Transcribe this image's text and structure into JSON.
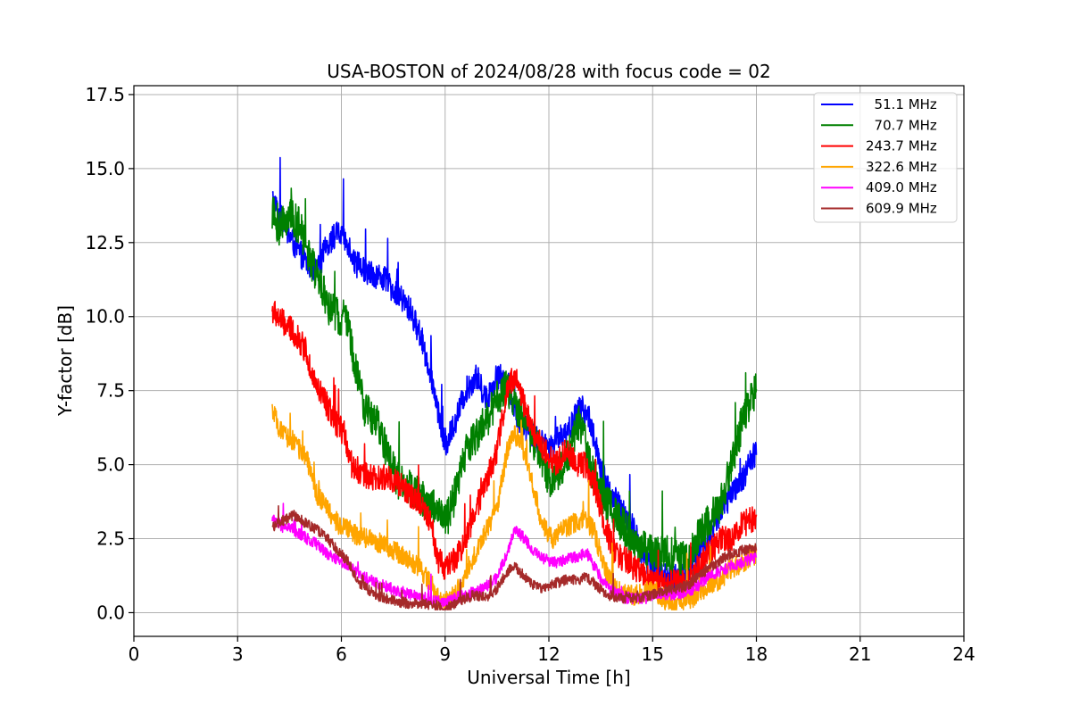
{
  "chart_data": {
    "type": "line",
    "title": "USA-BOSTON of 2024/08/28 with focus code = 02",
    "xlabel": "Universal Time [h]",
    "ylabel": "Y-factor [dB]",
    "xlim": [
      0,
      24
    ],
    "ylim": [
      -0.8,
      17.8
    ],
    "x_ticks": [
      "0",
      "3",
      "6",
      "9",
      "12",
      "15",
      "18",
      "21",
      "24"
    ],
    "y_ticks": [
      "0.0",
      "2.5",
      "5.0",
      "7.5",
      "10.0",
      "12.5",
      "15.0",
      "17.5"
    ],
    "grid": true,
    "legend_position": "upper right",
    "series": [
      {
        "name": "  51.1 MHz",
        "color": "#0000ff",
        "noise": 0.45,
        "points": [
          [
            4.0,
            14.0
          ],
          [
            4.3,
            13.2
          ],
          [
            4.6,
            12.5
          ],
          [
            5.0,
            11.8
          ],
          [
            5.3,
            11.5
          ],
          [
            5.6,
            12.5
          ],
          [
            5.9,
            12.8
          ],
          [
            6.2,
            12.5
          ],
          [
            6.4,
            11.8
          ],
          [
            6.8,
            11.5
          ],
          [
            7.2,
            11.3
          ],
          [
            7.6,
            10.8
          ],
          [
            8.0,
            10.2
          ],
          [
            8.3,
            9.3
          ],
          [
            8.6,
            8.0
          ],
          [
            8.8,
            6.8
          ],
          [
            9.0,
            5.6
          ],
          [
            9.3,
            6.5
          ],
          [
            9.6,
            7.5
          ],
          [
            9.9,
            8.0
          ],
          [
            10.2,
            7.2
          ],
          [
            10.5,
            8.0
          ],
          [
            10.8,
            7.8
          ],
          [
            11.1,
            6.5
          ],
          [
            11.4,
            6.2
          ],
          [
            11.7,
            5.8
          ],
          [
            12.0,
            5.5
          ],
          [
            12.3,
            6.0
          ],
          [
            12.6,
            6.2
          ],
          [
            12.9,
            7.0
          ],
          [
            13.2,
            6.5
          ],
          [
            13.5,
            4.8
          ],
          [
            13.8,
            4.0
          ],
          [
            14.1,
            3.5
          ],
          [
            14.4,
            3.0
          ],
          [
            14.7,
            2.0
          ],
          [
            15.0,
            1.5
          ],
          [
            15.5,
            1.2
          ],
          [
            16.0,
            1.2
          ],
          [
            16.3,
            2.0
          ],
          [
            16.6,
            2.5
          ],
          [
            17.0,
            3.5
          ],
          [
            17.3,
            4.0
          ],
          [
            17.6,
            4.5
          ],
          [
            18.0,
            5.5
          ]
        ]
      },
      {
        "name": "  70.7 MHz",
        "color": "#008000",
        "noise": 0.65,
        "points": [
          [
            4.0,
            13.5
          ],
          [
            4.2,
            13.0
          ],
          [
            4.5,
            13.5
          ],
          [
            4.8,
            13.0
          ],
          [
            5.1,
            12.0
          ],
          [
            5.4,
            11.0
          ],
          [
            5.7,
            10.2
          ],
          [
            6.0,
            10.0
          ],
          [
            6.2,
            9.8
          ],
          [
            6.4,
            8.2
          ],
          [
            6.7,
            6.8
          ],
          [
            7.0,
            6.5
          ],
          [
            7.3,
            5.5
          ],
          [
            7.6,
            4.5
          ],
          [
            8.0,
            4.2
          ],
          [
            8.4,
            3.8
          ],
          [
            8.8,
            3.5
          ],
          [
            9.0,
            3.0
          ],
          [
            9.3,
            4.0
          ],
          [
            9.6,
            5.5
          ],
          [
            9.9,
            6.0
          ],
          [
            10.2,
            6.5
          ],
          [
            10.5,
            7.2
          ],
          [
            10.8,
            7.6
          ],
          [
            11.1,
            6.8
          ],
          [
            11.4,
            6.2
          ],
          [
            11.7,
            5.5
          ],
          [
            12.0,
            4.5
          ],
          [
            12.3,
            4.8
          ],
          [
            12.6,
            5.5
          ],
          [
            12.9,
            6.5
          ],
          [
            13.2,
            5.0
          ],
          [
            13.5,
            4.0
          ],
          [
            13.8,
            3.5
          ],
          [
            14.1,
            3.0
          ],
          [
            14.4,
            2.5
          ],
          [
            14.7,
            2.2
          ],
          [
            15.0,
            2.0
          ],
          [
            15.5,
            2.0
          ],
          [
            16.0,
            1.8
          ],
          [
            16.3,
            2.5
          ],
          [
            16.6,
            3.0
          ],
          [
            17.0,
            3.8
          ],
          [
            17.3,
            5.0
          ],
          [
            17.6,
            6.5
          ],
          [
            18.0,
            7.5
          ]
        ]
      },
      {
        "name": "243.7 MHz",
        "color": "#ff0000",
        "noise": 0.45,
        "points": [
          [
            4.0,
            10.2
          ],
          [
            4.3,
            9.8
          ],
          [
            4.6,
            9.5
          ],
          [
            5.0,
            8.8
          ],
          [
            5.2,
            7.8
          ],
          [
            5.5,
            7.2
          ],
          [
            5.8,
            6.5
          ],
          [
            6.1,
            6.0
          ],
          [
            6.3,
            5.0
          ],
          [
            6.6,
            4.7
          ],
          [
            7.0,
            4.5
          ],
          [
            7.4,
            4.6
          ],
          [
            7.8,
            4.2
          ],
          [
            8.2,
            3.8
          ],
          [
            8.6,
            3.0
          ],
          [
            8.8,
            1.8
          ],
          [
            9.0,
            1.5
          ],
          [
            9.3,
            1.8
          ],
          [
            9.6,
            2.5
          ],
          [
            9.9,
            3.5
          ],
          [
            10.2,
            4.5
          ],
          [
            10.5,
            5.5
          ],
          [
            10.8,
            7.5
          ],
          [
            11.0,
            8.0
          ],
          [
            11.3,
            7.0
          ],
          [
            11.6,
            6.0
          ],
          [
            11.9,
            5.5
          ],
          [
            12.2,
            5.0
          ],
          [
            12.5,
            5.5
          ],
          [
            12.8,
            5.0
          ],
          [
            13.1,
            5.0
          ],
          [
            13.4,
            4.0
          ],
          [
            13.6,
            3.0
          ],
          [
            13.9,
            2.0
          ],
          [
            14.2,
            1.8
          ],
          [
            14.5,
            1.5
          ],
          [
            14.8,
            1.2
          ],
          [
            15.0,
            1.0
          ],
          [
            15.5,
            1.0
          ],
          [
            16.0,
            1.0
          ],
          [
            16.3,
            1.5
          ],
          [
            16.6,
            2.0
          ],
          [
            17.0,
            2.5
          ],
          [
            17.3,
            2.5
          ],
          [
            17.6,
            3.0
          ],
          [
            18.0,
            3.2
          ]
        ]
      },
      {
        "name": "322.6 MHz",
        "color": "#ffa500",
        "noise": 0.35,
        "points": [
          [
            4.0,
            6.8
          ],
          [
            4.3,
            6.0
          ],
          [
            4.6,
            5.8
          ],
          [
            5.0,
            5.2
          ],
          [
            5.3,
            4.0
          ],
          [
            5.6,
            3.5
          ],
          [
            5.9,
            3.0
          ],
          [
            6.2,
            2.8
          ],
          [
            6.5,
            2.6
          ],
          [
            7.0,
            2.4
          ],
          [
            7.4,
            2.2
          ],
          [
            7.8,
            1.9
          ],
          [
            8.2,
            1.6
          ],
          [
            8.6,
            1.0
          ],
          [
            8.8,
            0.5
          ],
          [
            9.0,
            0.4
          ],
          [
            9.3,
            0.6
          ],
          [
            9.6,
            1.4
          ],
          [
            9.9,
            2.0
          ],
          [
            10.2,
            2.8
          ],
          [
            10.5,
            3.5
          ],
          [
            10.8,
            5.5
          ],
          [
            11.0,
            6.0
          ],
          [
            11.2,
            5.8
          ],
          [
            11.5,
            4.5
          ],
          [
            11.8,
            3.0
          ],
          [
            12.1,
            2.5
          ],
          [
            12.4,
            2.8
          ],
          [
            12.7,
            3.0
          ],
          [
            13.0,
            3.2
          ],
          [
            13.3,
            2.8
          ],
          [
            13.6,
            1.5
          ],
          [
            13.9,
            0.8
          ],
          [
            14.2,
            0.6
          ],
          [
            14.5,
            0.6
          ],
          [
            14.8,
            0.7
          ],
          [
            15.0,
            0.8
          ],
          [
            15.3,
            0.5
          ],
          [
            15.6,
            0.2
          ],
          [
            16.0,
            0.4
          ],
          [
            16.3,
            0.6
          ],
          [
            16.6,
            0.8
          ],
          [
            17.0,
            1.2
          ],
          [
            17.3,
            1.5
          ],
          [
            17.6,
            1.7
          ],
          [
            18.0,
            2.0
          ]
        ]
      },
      {
        "name": "409.0 MHz",
        "color": "#ff00ff",
        "noise": 0.2,
        "points": [
          [
            4.0,
            3.2
          ],
          [
            4.3,
            2.9
          ],
          [
            4.6,
            2.8
          ],
          [
            5.0,
            2.5
          ],
          [
            5.3,
            2.3
          ],
          [
            5.6,
            2.0
          ],
          [
            5.9,
            1.8
          ],
          [
            6.2,
            1.6
          ],
          [
            6.5,
            1.3
          ],
          [
            7.0,
            1.0
          ],
          [
            7.5,
            0.8
          ],
          [
            8.0,
            0.6
          ],
          [
            8.4,
            0.5
          ],
          [
            8.8,
            0.4
          ],
          [
            9.0,
            0.3
          ],
          [
            9.3,
            0.5
          ],
          [
            9.6,
            0.6
          ],
          [
            9.9,
            0.7
          ],
          [
            10.2,
            0.9
          ],
          [
            10.5,
            1.2
          ],
          [
            10.8,
            2.0
          ],
          [
            11.0,
            2.8
          ],
          [
            11.3,
            2.5
          ],
          [
            11.6,
            2.0
          ],
          [
            11.9,
            1.8
          ],
          [
            12.2,
            1.7
          ],
          [
            12.5,
            1.8
          ],
          [
            12.8,
            1.9
          ],
          [
            13.1,
            2.0
          ],
          [
            13.3,
            1.6
          ],
          [
            13.6,
            1.0
          ],
          [
            13.9,
            0.7
          ],
          [
            14.2,
            0.5
          ],
          [
            14.5,
            0.5
          ],
          [
            14.8,
            0.5
          ],
          [
            15.0,
            0.6
          ],
          [
            15.5,
            0.6
          ],
          [
            16.0,
            0.7
          ],
          [
            16.3,
            0.9
          ],
          [
            16.6,
            1.2
          ],
          [
            17.0,
            1.4
          ],
          [
            17.3,
            1.6
          ],
          [
            17.6,
            1.7
          ],
          [
            18.0,
            1.9
          ]
        ]
      },
      {
        "name": "609.9 MHz",
        "color": "#a52a2a",
        "noise": 0.18,
        "points": [
          [
            4.0,
            2.9
          ],
          [
            4.3,
            3.1
          ],
          [
            4.6,
            3.3
          ],
          [
            5.0,
            3.0
          ],
          [
            5.3,
            2.8
          ],
          [
            5.6,
            2.5
          ],
          [
            5.9,
            2.1
          ],
          [
            6.2,
            1.7
          ],
          [
            6.5,
            1.0
          ],
          [
            7.0,
            0.6
          ],
          [
            7.5,
            0.4
          ],
          [
            8.0,
            0.3
          ],
          [
            8.4,
            0.3
          ],
          [
            8.8,
            0.2
          ],
          [
            9.0,
            0.1
          ],
          [
            9.3,
            0.3
          ],
          [
            9.6,
            0.5
          ],
          [
            9.9,
            0.6
          ],
          [
            10.2,
            0.5
          ],
          [
            10.5,
            0.8
          ],
          [
            10.8,
            1.4
          ],
          [
            11.0,
            1.6
          ],
          [
            11.3,
            1.2
          ],
          [
            11.6,
            0.9
          ],
          [
            11.9,
            0.8
          ],
          [
            12.2,
            1.0
          ],
          [
            12.5,
            1.1
          ],
          [
            12.8,
            1.1
          ],
          [
            13.1,
            1.2
          ],
          [
            13.4,
            0.9
          ],
          [
            13.7,
            0.6
          ],
          [
            14.0,
            0.5
          ],
          [
            14.5,
            0.5
          ],
          [
            15.0,
            0.6
          ],
          [
            15.5,
            0.8
          ],
          [
            16.0,
            0.9
          ],
          [
            16.3,
            1.2
          ],
          [
            16.6,
            1.5
          ],
          [
            17.0,
            1.8
          ],
          [
            17.3,
            2.0
          ],
          [
            17.6,
            2.1
          ],
          [
            18.0,
            2.2
          ]
        ]
      }
    ]
  }
}
